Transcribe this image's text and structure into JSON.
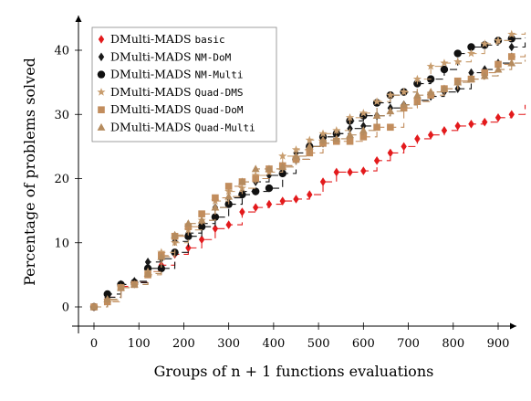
{
  "chart_data": {
    "type": "line",
    "xlabel": "Groups of n + 1 functions evaluations",
    "ylabel": "Percentage of problems solved",
    "xlim": [
      -30,
      960
    ],
    "ylim": [
      -3,
      45
    ],
    "x_ticks": [
      0,
      100,
      200,
      300,
      400,
      500,
      600,
      700,
      800,
      900
    ],
    "y_ticks": [
      0,
      10,
      20,
      30,
      40
    ],
    "grid": false,
    "legend_position": "top-left",
    "series": [
      {
        "name": "DMulti-MADS",
        "name_mono": "basic",
        "color": "#e31a1c",
        "marker": "diamond",
        "dash": "8 5",
        "x": [
          0,
          30,
          60,
          90,
          120,
          150,
          180,
          210,
          240,
          270,
          300,
          330,
          360,
          390,
          420,
          450,
          480,
          510,
          540,
          570,
          600,
          630,
          660,
          690,
          720,
          750,
          780,
          810,
          840,
          870,
          900,
          930,
          960
        ],
        "y": [
          0,
          1.5,
          3.2,
          3.8,
          5.5,
          6.5,
          8.2,
          9.2,
          10.5,
          12.2,
          12.8,
          14.8,
          15.5,
          16.0,
          16.5,
          16.8,
          17.5,
          19.5,
          21.0,
          21.0,
          21.2,
          22.8,
          24.0,
          25.0,
          26.2,
          26.8,
          27.5,
          28.2,
          28.5,
          28.8,
          29.5,
          30.0,
          31.5
        ]
      },
      {
        "name": "DMulti-MADS",
        "name_mono": "NM-DoM",
        "color": "#1a1a1a",
        "marker": "diamond",
        "dash": "8 5",
        "x": [
          0,
          30,
          60,
          90,
          120,
          150,
          180,
          210,
          240,
          270,
          300,
          330,
          360,
          390,
          420,
          450,
          480,
          510,
          540,
          570,
          600,
          630,
          660,
          690,
          720,
          750,
          780,
          810,
          840,
          870,
          900,
          930,
          960
        ],
        "y": [
          0,
          1.5,
          3.5,
          4.0,
          7.0,
          7.5,
          10.2,
          11.5,
          13.0,
          15.5,
          17.0,
          18.0,
          19.5,
          20.5,
          22.0,
          24.0,
          25.0,
          25.5,
          27.0,
          27.8,
          28.2,
          29.8,
          31.0,
          31.5,
          32.2,
          32.8,
          33.5,
          34.0,
          36.5,
          37.0,
          38.0,
          40.5,
          41.5
        ]
      },
      {
        "name": "DMulti-MADS",
        "name_mono": "NM-Multi",
        "color": "#111111",
        "marker": "circle",
        "dash": "8 5",
        "x": [
          0,
          30,
          60,
          90,
          120,
          150,
          180,
          210,
          240,
          270,
          300,
          330,
          360,
          390,
          420,
          450,
          480,
          510,
          540,
          570,
          600,
          630,
          660,
          690,
          720,
          750,
          780,
          810,
          840,
          870,
          900,
          930,
          960
        ],
        "y": [
          0,
          2.0,
          3.5,
          3.8,
          6.0,
          6.0,
          8.5,
          11.0,
          12.5,
          14.0,
          16.0,
          17.5,
          18.0,
          18.5,
          20.8,
          23.0,
          25.0,
          26.5,
          27.0,
          29.0,
          29.8,
          31.8,
          33.0,
          33.5,
          34.8,
          35.5,
          37.0,
          39.5,
          40.5,
          40.8,
          41.5,
          41.8,
          42.0
        ]
      },
      {
        "name": "DMulti-MADS",
        "name_mono": "Quad-DMS",
        "color": "#c89d6e",
        "marker": "star",
        "dash": "8 5",
        "x": [
          0,
          30,
          60,
          90,
          120,
          150,
          180,
          210,
          240,
          270,
          300,
          330,
          360,
          390,
          420,
          450,
          480,
          510,
          540,
          570,
          600,
          630,
          660,
          690,
          720,
          750,
          780,
          810,
          840,
          870,
          900,
          930,
          960
        ],
        "y": [
          0,
          1.0,
          3.0,
          3.5,
          5.5,
          8.5,
          10.0,
          12.0,
          13.5,
          16.5,
          18.0,
          18.5,
          20.5,
          21.0,
          23.5,
          24.5,
          26.0,
          27.0,
          27.5,
          29.5,
          30.2,
          32.0,
          33.0,
          33.5,
          35.5,
          37.5,
          38.0,
          38.2,
          39.5,
          41.0,
          41.5,
          42.5,
          42.8
        ]
      },
      {
        "name": "DMulti-MADS",
        "name_mono": "Quad-DoM",
        "color": "#c28d5d",
        "marker": "square",
        "dash": "8 5",
        "x": [
          0,
          30,
          60,
          90,
          120,
          150,
          180,
          210,
          240,
          270,
          300,
          330,
          360,
          390,
          420,
          450,
          480,
          510,
          540,
          570,
          600,
          630,
          660,
          690,
          720,
          750,
          780,
          810,
          840,
          870,
          900,
          930,
          960
        ],
        "y": [
          0,
          0.8,
          3.0,
          3.5,
          5.0,
          8.0,
          11.0,
          12.5,
          14.5,
          17.0,
          18.8,
          19.5,
          20.0,
          21.5,
          22.0,
          23.0,
          24.0,
          25.5,
          25.8,
          25.8,
          26.5,
          28.0,
          28.0,
          31.0,
          32.0,
          33.0,
          34.0,
          35.2,
          35.5,
          36.5,
          37.8,
          39.0,
          39.5
        ]
      },
      {
        "name": "DMulti-MADS",
        "name_mono": "Quad-Multi",
        "color": "#b58b5e",
        "marker": "triangle",
        "dash": "8 5",
        "x": [
          0,
          30,
          60,
          90,
          120,
          150,
          180,
          210,
          240,
          270,
          300,
          330,
          360,
          390,
          420,
          450,
          480,
          510,
          540,
          570,
          600,
          630,
          660,
          690,
          720,
          750,
          780,
          810,
          840,
          870,
          900,
          930,
          960
        ],
        "y": [
          0,
          1.2,
          3.0,
          3.5,
          5.2,
          7.8,
          11.2,
          13.0,
          13.5,
          15.5,
          17.2,
          19.5,
          21.5,
          21.5,
          21.8,
          23.5,
          25.0,
          26.0,
          26.2,
          26.8,
          27.5,
          29.8,
          30.5,
          31.5,
          33.0,
          33.5,
          34.0,
          35.0,
          35.5,
          36.0,
          37.0,
          38.0,
          38.5
        ]
      }
    ]
  }
}
